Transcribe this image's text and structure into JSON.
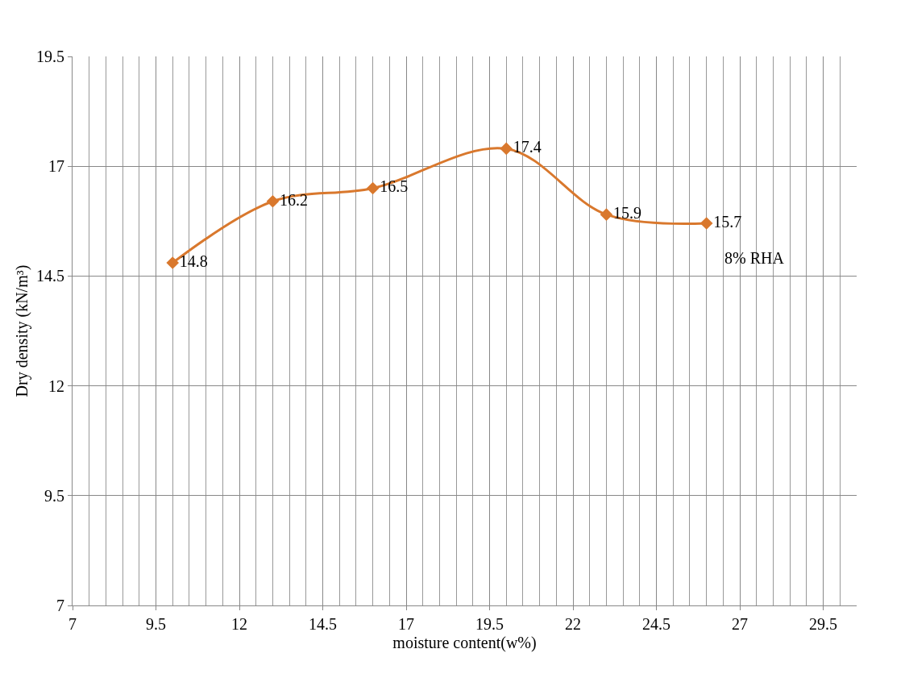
{
  "chart_data": {
    "type": "line",
    "xlabel": "moisture content(w%)",
    "ylabel": "Dry density (kN/m³)",
    "x": [
      10,
      13,
      16,
      20,
      23,
      26
    ],
    "series": [
      {
        "name": "8% RHA",
        "color": "#d9782d",
        "values": [
          14.8,
          16.2,
          16.5,
          17.4,
          15.9,
          15.7
        ]
      }
    ],
    "xlim": [
      7,
      30.5
    ],
    "xticks": [
      7,
      9.5,
      12,
      14.5,
      17,
      19.5,
      22,
      24.5,
      27,
      29.5
    ],
    "ylim": [
      7,
      19.5
    ],
    "yticks": [
      7,
      9.5,
      12,
      14.5,
      17,
      19.5
    ],
    "grid": true,
    "marker": "diamond",
    "line_style": "solid",
    "data_labels": true
  }
}
